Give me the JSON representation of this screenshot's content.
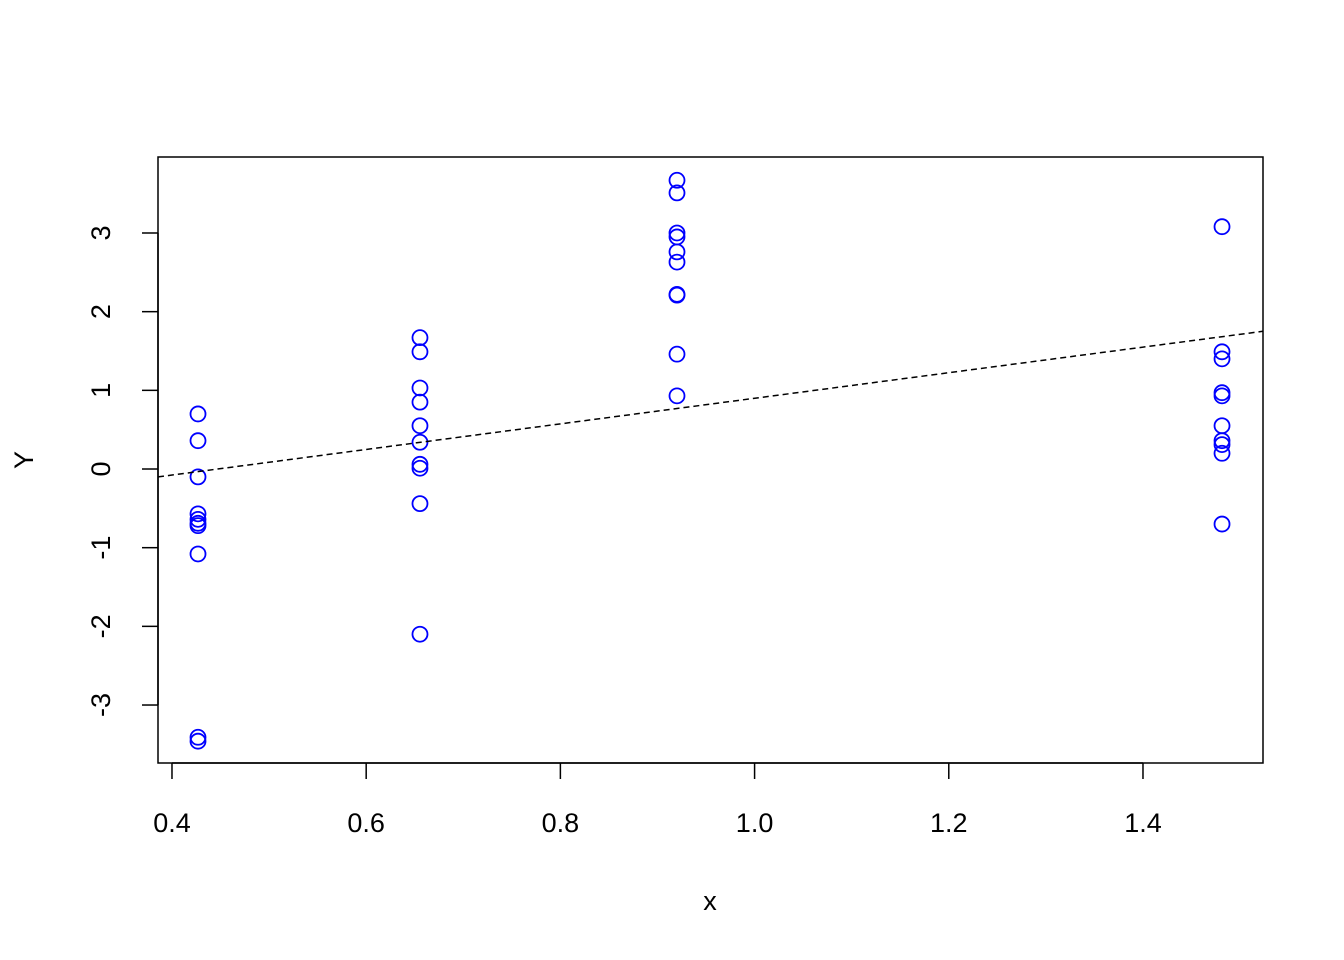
{
  "chart_data": {
    "type": "scatter",
    "x_label": "x",
    "y_label": "Y",
    "xlim": [
      0.3856,
      1.5236
    ],
    "ylim": [
      -3.737,
      3.966
    ],
    "xticks": [
      0.4,
      0.6,
      0.8,
      {
        "value": 1,
        "label": "1.0"
      },
      1.2,
      1.4
    ],
    "yticks": [
      -3,
      -2,
      -1,
      0,
      1,
      2,
      3
    ],
    "series": [
      {
        "color": "#0000ff",
        "x": [
          0.4268,
          0.4268,
          0.4268,
          0.4268,
          0.4268,
          0.4268,
          0.4268,
          0.4268,
          0.4268,
          0.4268,
          0.6554,
          0.6554,
          0.6554,
          0.6554,
          0.6554,
          0.6554,
          0.6554,
          0.6554,
          0.6554,
          0.6554,
          0.9201,
          0.9201,
          0.9201,
          0.9201,
          0.9201,
          0.9201,
          0.9201,
          0.9201,
          0.9201,
          0.9201,
          1.4814,
          1.4814,
          1.4814,
          1.4814,
          1.4814,
          1.4814,
          1.4814,
          1.4814,
          1.4814,
          1.4814
        ],
        "values": [
          0.7,
          0.36,
          -0.1,
          -0.57,
          -0.64,
          -0.69,
          -0.72,
          -1.08,
          -3.41,
          -3.46,
          1.67,
          1.49,
          1.03,
          0.85,
          0.55,
          0.34,
          0.06,
          0.01,
          -0.44,
          -2.1,
          3.67,
          3.51,
          3.0,
          2.95,
          2.76,
          2.63,
          2.22,
          2.21,
          1.46,
          0.93,
          3.08,
          1.49,
          1.4,
          0.97,
          0.93,
          0.55,
          0.36,
          0.31,
          0.2,
          -0.7
        ]
      }
    ],
    "abline": {
      "intercept": -0.727,
      "slope": 1.626,
      "color": "#000000"
    }
  }
}
